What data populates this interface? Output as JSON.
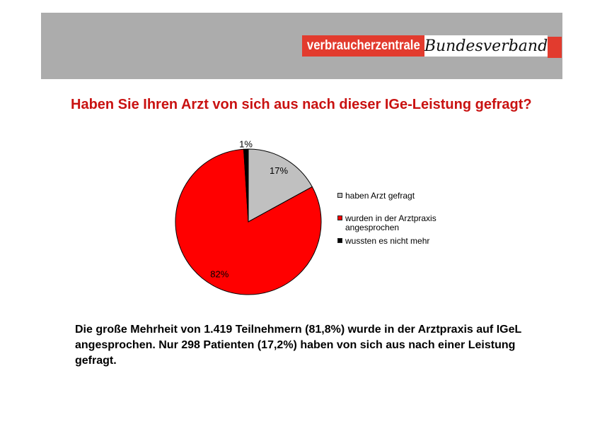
{
  "header": {
    "logo": {
      "primary": "verbraucherzentrale",
      "secondary": "Bundesverband"
    }
  },
  "title": {
    "text": "Haben Sie Ihren Arzt von sich aus nach dieser IGe-Leistung gefragt?"
  },
  "chart_data": {
    "type": "pie",
    "start_angle_deg": 0,
    "direction": "clockwise",
    "slices": [
      {
        "id": "haben-arzt-gefragt",
        "label": "haben Arzt gefragt",
        "value": 17,
        "pct_label": "17%",
        "color": "#c0c0c0",
        "label_outside": false
      },
      {
        "id": "arztpraxis-angesprochen",
        "label": "wurden in der Arztpraxis angesprochen",
        "value": 82,
        "pct_label": "82%",
        "color": "#ff0000",
        "label_outside": false
      },
      {
        "id": "wussten-nicht-mehr",
        "label": "wussten es nicht mehr",
        "value": 1,
        "pct_label": "1%",
        "color": "#000000",
        "label_outside": true
      }
    ],
    "legend": {
      "position": "right",
      "items": [
        {
          "lines": [
            "haben Arzt gefragt"
          ]
        },
        {
          "lines": [
            "wurden in der Arztpraxis",
            "angesprochen"
          ]
        },
        {
          "lines": [
            "wussten es nicht mehr"
          ]
        }
      ]
    }
  },
  "summary": {
    "lines": [
      "Die große Mehrheit von 1.419 Teilnehmern (81,8%) wurde in der Arztpraxis auf IGeL",
      "angesprochen. Nur 298 Patienten (17,2%) haben von sich aus nach einer Leistung",
      "gefragt."
    ]
  },
  "colors": {
    "header_bar": "#acacac",
    "brand_red": "#e23b2e",
    "title_red": "#c91211",
    "pie_gray": "#c0c0c0",
    "pie_red": "#ff0000",
    "pie_black": "#000000",
    "background": "#ffffff"
  }
}
